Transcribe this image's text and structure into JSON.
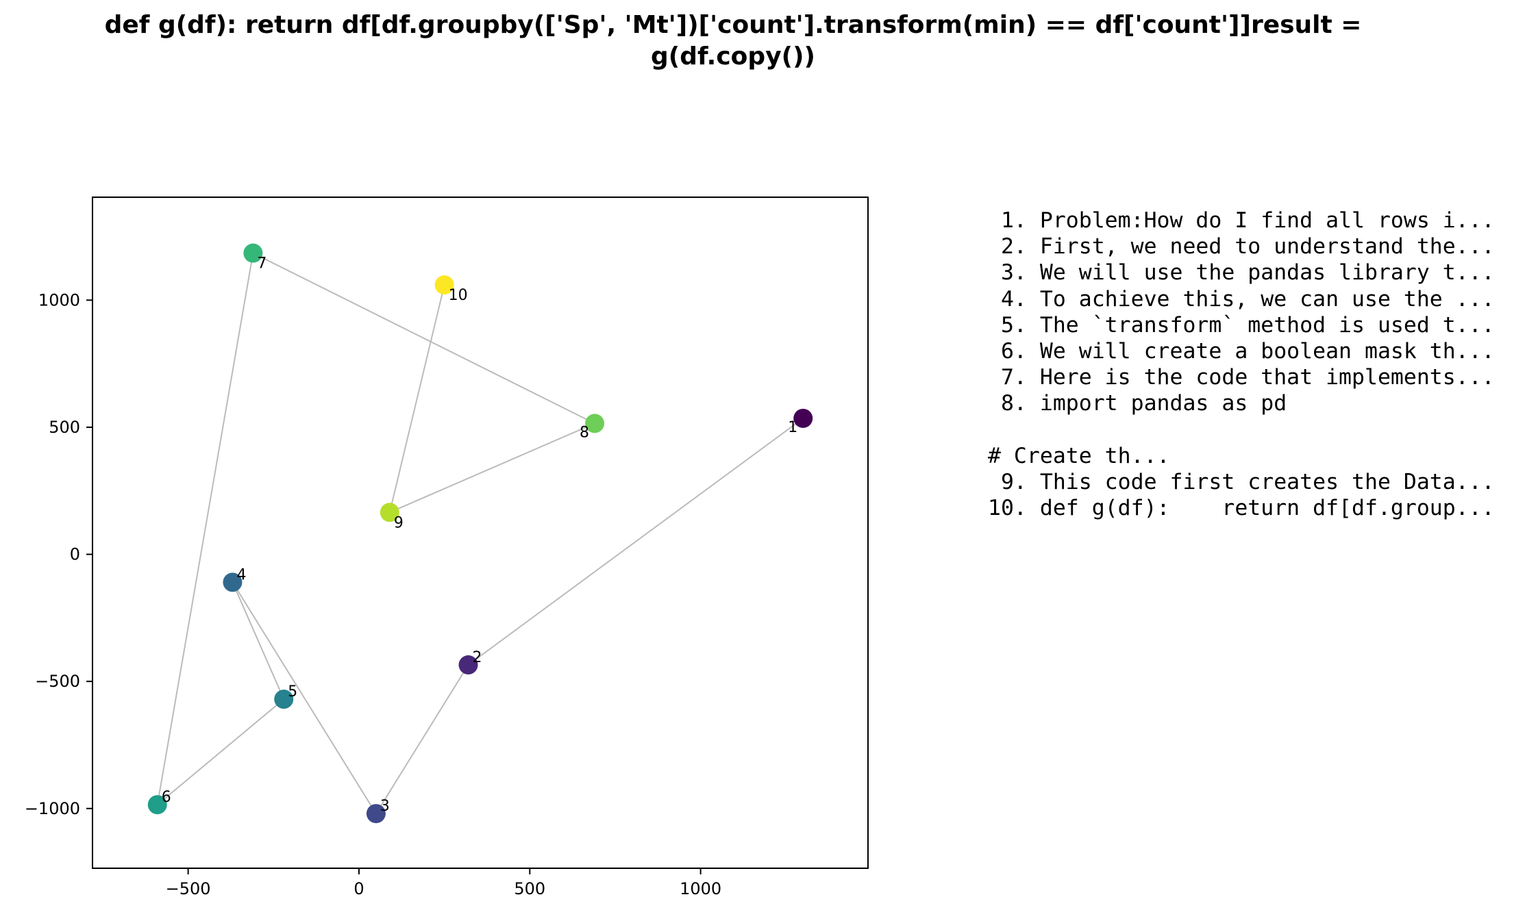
{
  "chart_data": {
    "type": "scatter",
    "title_lines": [
      "def g(df):    return df[df.groupby(['Sp', 'Mt'])['count'].transform(min) == df['count']]result =",
      "g(df.copy())"
    ],
    "xlabel": "",
    "ylabel": "",
    "xlim": [
      -780,
      1490
    ],
    "ylim": [
      -1235,
      1405
    ],
    "xticks": [
      -500,
      0,
      500,
      1000
    ],
    "yticks": [
      -1000,
      -500,
      0,
      500,
      1000
    ],
    "grid": false,
    "connect_points": true,
    "points": [
      {
        "label": "1",
        "x": 1300,
        "y": 535,
        "color": "#440154"
      },
      {
        "label": "2",
        "x": 320,
        "y": -435,
        "color": "#482878"
      },
      {
        "label": "3",
        "x": 50,
        "y": -1020,
        "color": "#3e4a89"
      },
      {
        "label": "4",
        "x": -370,
        "y": -110,
        "color": "#31688e"
      },
      {
        "label": "5",
        "x": -220,
        "y": -570,
        "color": "#26828e"
      },
      {
        "label": "6",
        "x": -590,
        "y": -985,
        "color": "#1f9e89"
      },
      {
        "label": "7",
        "x": -310,
        "y": 1185,
        "color": "#35b779"
      },
      {
        "label": "8",
        "x": 690,
        "y": 515,
        "color": "#6ece58"
      },
      {
        "label": "9",
        "x": 90,
        "y": 165,
        "color": "#b5de2b"
      },
      {
        "label": "10",
        "x": 250,
        "y": 1060,
        "color": "#fde725"
      }
    ],
    "line_color": "#bbbbbb"
  },
  "legend_lines": [
    " 1. Problem:How do I find all rows i...",
    " 2. First, we need to understand the...",
    " 3. We will use the pandas library t...",
    " 4. To achieve this, we can use the ...",
    " 5. The `transform` method is used t...",
    " 6. We will create a boolean mask th...",
    " 7. Here is the code that implements...",
    " 8. import pandas as pd",
    "",
    "# Create th...",
    " 9. This code first creates the Data...",
    "10. def g(df):    return df[df.group..."
  ]
}
